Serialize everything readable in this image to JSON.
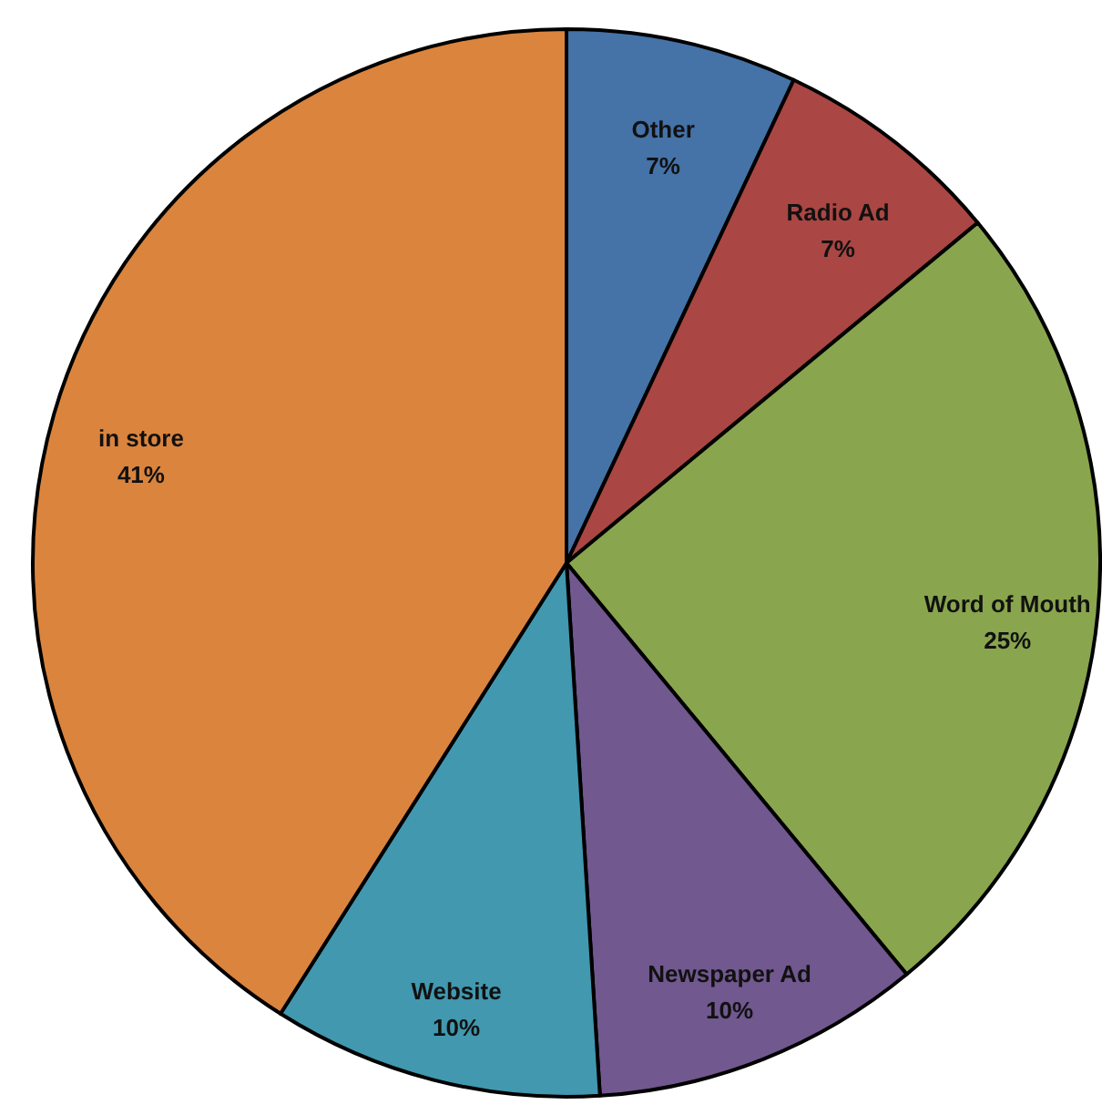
{
  "chart_data": {
    "type": "pie",
    "categories": [
      "Other",
      "Radio Ad",
      "Word of Mouth",
      "Newspaper Ad",
      "Website",
      "in store"
    ],
    "values": [
      7,
      7,
      25,
      10,
      10,
      41
    ],
    "colors": [
      "#4572a7",
      "#aa4643",
      "#89a54e",
      "#71588f",
      "#4198af",
      "#db843d"
    ],
    "value_labels": [
      "7%",
      "7%",
      "25%",
      "10%",
      "10%",
      "41%"
    ]
  }
}
